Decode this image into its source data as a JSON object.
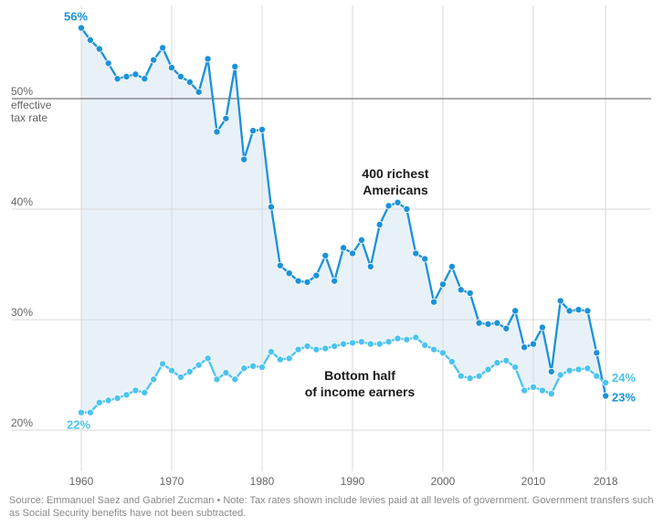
{
  "chart_data": {
    "type": "line",
    "ylim": [
      15,
      57
    ],
    "xlim": [
      1958,
      2021
    ],
    "x_ticks": [
      "1960",
      "1970",
      "1980",
      "1990",
      "2000",
      "2010",
      "2018"
    ],
    "y_ticks": [
      "20%",
      "30%",
      "40%",
      "50%"
    ],
    "y_axis_note": [
      "effective",
      "tax rate"
    ],
    "reference_line": 50,
    "grid": true,
    "fill_between_series": true,
    "colors": {
      "top": "#1b92d8",
      "bottom": "#4cc3ee",
      "fill": "#e8f1f8",
      "grid": "#d9d9d9",
      "reference": "#777777"
    },
    "series": [
      {
        "name": "400 richest Americans",
        "label_lines": [
          "400 richest",
          "Americans"
        ],
        "start_label": "56%",
        "end_label": "23%",
        "x": [
          1960,
          1961,
          1962,
          1963,
          1964,
          1965,
          1966,
          1967,
          1968,
          1969,
          1970,
          1971,
          1972,
          1973,
          1974,
          1975,
          1976,
          1977,
          1978,
          1979,
          1980,
          1981,
          1982,
          1983,
          1984,
          1985,
          1986,
          1987,
          1988,
          1989,
          1990,
          1991,
          1992,
          1993,
          1994,
          1995,
          1996,
          1997,
          1998,
          1999,
          2000,
          2001,
          2002,
          2003,
          2004,
          2005,
          2006,
          2007,
          2008,
          2009,
          2010,
          2011,
          2012,
          2013,
          2014,
          2015,
          2016,
          2017,
          2018
        ],
        "values": [
          56.4,
          55.3,
          54.5,
          53.2,
          51.8,
          52.0,
          52.2,
          51.8,
          53.5,
          54.6,
          52.8,
          52.0,
          51.5,
          50.6,
          53.6,
          47.0,
          48.2,
          52.9,
          44.5,
          47.1,
          47.2,
          40.2,
          34.9,
          34.2,
          33.5,
          33.4,
          34.0,
          35.8,
          33.5,
          36.5,
          36.0,
          37.2,
          34.8,
          38.6,
          40.3,
          40.6,
          40.0,
          36.0,
          35.5,
          31.6,
          33.2,
          34.8,
          32.7,
          32.4,
          29.7,
          29.6,
          29.7,
          29.2,
          30.8,
          27.5,
          27.8,
          29.3,
          25.3,
          31.7,
          30.8,
          30.9,
          30.8,
          27.0,
          23.1
        ]
      },
      {
        "name": "Bottom half of income earners",
        "label_lines": [
          "Bottom half",
          "of income earners"
        ],
        "start_label": "22%",
        "end_label": "24%",
        "x": [
          1960,
          1961,
          1962,
          1963,
          1964,
          1965,
          1966,
          1967,
          1968,
          1969,
          1970,
          1971,
          1972,
          1973,
          1974,
          1975,
          1976,
          1977,
          1978,
          1979,
          1980,
          1981,
          1982,
          1983,
          1984,
          1985,
          1986,
          1987,
          1988,
          1989,
          1990,
          1991,
          1992,
          1993,
          1994,
          1995,
          1996,
          1997,
          1998,
          1999,
          2000,
          2001,
          2002,
          2003,
          2004,
          2005,
          2006,
          2007,
          2008,
          2009,
          2010,
          2011,
          2012,
          2013,
          2014,
          2015,
          2016,
          2017,
          2018
        ],
        "values": [
          21.6,
          21.6,
          22.5,
          22.7,
          22.9,
          23.2,
          23.6,
          23.4,
          24.6,
          26.0,
          25.4,
          24.8,
          25.3,
          25.9,
          26.5,
          24.6,
          25.2,
          24.6,
          25.6,
          25.8,
          25.7,
          27.1,
          26.4,
          26.5,
          27.3,
          27.6,
          27.3,
          27.4,
          27.6,
          27.8,
          27.9,
          28.0,
          27.8,
          27.8,
          28.0,
          28.3,
          28.2,
          28.4,
          27.7,
          27.3,
          27.0,
          26.2,
          24.9,
          24.7,
          24.9,
          25.5,
          26.1,
          26.3,
          25.7,
          23.6,
          23.9,
          23.6,
          23.3,
          25.0,
          25.4,
          25.5,
          25.6,
          24.9,
          24.3
        ]
      }
    ]
  },
  "source_note": "Source: Emmanuel Saez and Gabriel Zucman  •  Note: Tax rates shown include levies paid at all levels of government. Government transfers such as Social Security benefits have not been subtracted."
}
